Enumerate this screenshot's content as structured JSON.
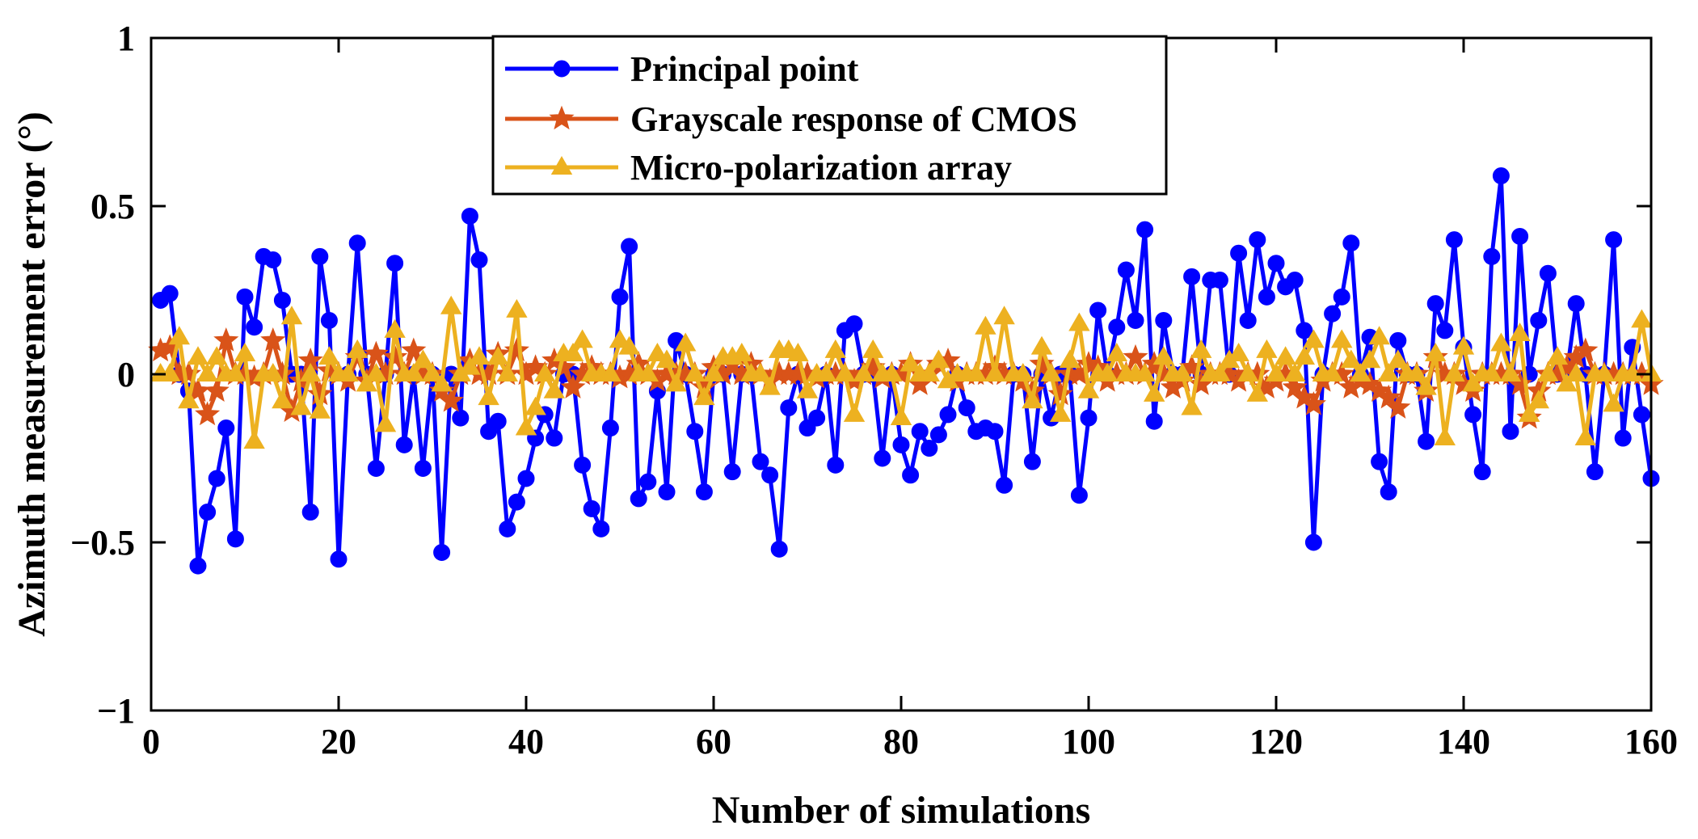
{
  "chart_data": {
    "type": "line",
    "title": "",
    "xlabel": "Number of simulations",
    "ylabel": "Azimuth measurement error (°)",
    "xlim": [
      0,
      160
    ],
    "ylim": [
      -1,
      1
    ],
    "xticks": [
      0,
      20,
      40,
      60,
      80,
      100,
      120,
      140,
      160
    ],
    "yticks": [
      -1,
      -0.5,
      0,
      0.5,
      1
    ],
    "xtick_labels": [
      "0",
      "20",
      "40",
      "60",
      "80",
      "100",
      "120",
      "140",
      "160"
    ],
    "ytick_labels": [
      "−1",
      "−0.5",
      "0",
      "0.5",
      "1"
    ],
    "grid": false,
    "legend_position": "top-center",
    "x": [
      1,
      2,
      3,
      4,
      5,
      6,
      7,
      8,
      9,
      10,
      11,
      12,
      13,
      14,
      15,
      16,
      17,
      18,
      19,
      20,
      21,
      22,
      23,
      24,
      25,
      26,
      27,
      28,
      29,
      30,
      31,
      32,
      33,
      34,
      35,
      36,
      37,
      38,
      39,
      40,
      41,
      42,
      43,
      44,
      45,
      46,
      47,
      48,
      49,
      50,
      51,
      52,
      53,
      54,
      55,
      56,
      57,
      58,
      59,
      60,
      61,
      62,
      63,
      64,
      65,
      66,
      67,
      68,
      69,
      70,
      71,
      72,
      73,
      74,
      75,
      76,
      77,
      78,
      79,
      80,
      81,
      82,
      83,
      84,
      85,
      86,
      87,
      88,
      89,
      90,
      91,
      92,
      93,
      94,
      95,
      96,
      97,
      98,
      99,
      100,
      101,
      102,
      103,
      104,
      105,
      106,
      107,
      108,
      109,
      110,
      111,
      112,
      113,
      114,
      115,
      116,
      117,
      118,
      119,
      120,
      121,
      122,
      123,
      124,
      125,
      126,
      127,
      128,
      129,
      130,
      131,
      132,
      133,
      134,
      135,
      136,
      137,
      138,
      139,
      140,
      141,
      142,
      143,
      144,
      145,
      146,
      147,
      148,
      149,
      150,
      151,
      152,
      153,
      154,
      155,
      156,
      157,
      158,
      159,
      160
    ],
    "series": [
      {
        "name": "Principal point",
        "color": "#0000ff",
        "marker": "circle",
        "values": [
          0.22,
          0.24,
          0.0,
          -0.05,
          -0.57,
          -0.41,
          -0.31,
          -0.16,
          -0.49,
          0.23,
          0.14,
          0.35,
          0.34,
          0.22,
          0.0,
          0.0,
          -0.41,
          0.35,
          0.16,
          -0.55,
          0.0,
          0.39,
          0.0,
          -0.28,
          0.0,
          0.33,
          -0.21,
          0.0,
          -0.28,
          0.0,
          -0.53,
          0.0,
          -0.13,
          0.47,
          0.34,
          -0.17,
          -0.14,
          -0.46,
          -0.38,
          -0.31,
          -0.19,
          -0.12,
          -0.19,
          0.0,
          0.0,
          -0.27,
          -0.4,
          -0.46,
          -0.16,
          0.23,
          0.38,
          -0.37,
          -0.32,
          -0.05,
          -0.35,
          0.1,
          0.0,
          -0.17,
          -0.35,
          0.0,
          0.0,
          -0.29,
          0.0,
          0.0,
          -0.26,
          -0.3,
          -0.52,
          -0.1,
          0.0,
          -0.16,
          -0.13,
          0.0,
          -0.27,
          0.13,
          0.15,
          0.0,
          0.0,
          -0.25,
          0.0,
          -0.21,
          -0.3,
          -0.17,
          -0.22,
          -0.18,
          -0.12,
          0.0,
          -0.1,
          -0.17,
          -0.16,
          -0.17,
          -0.33,
          0.0,
          0.0,
          -0.26,
          0.0,
          -0.13,
          0.0,
          0.0,
          -0.36,
          -0.13,
          0.19,
          0.0,
          0.14,
          0.31,
          0.16,
          0.43,
          -0.14,
          0.16,
          0.0,
          0.0,
          0.29,
          0.0,
          0.28,
          0.28,
          0.0,
          0.36,
          0.16,
          0.4,
          0.23,
          0.33,
          0.26,
          0.28,
          0.13,
          -0.5,
          0.0,
          0.18,
          0.23,
          0.39,
          0.0,
          0.11,
          -0.26,
          -0.35,
          0.1,
          0.0,
          0.0,
          -0.2,
          0.21,
          0.13,
          0.4,
          0.08,
          -0.12,
          -0.29,
          0.35,
          0.59,
          -0.17,
          0.41,
          0.0,
          0.16,
          0.3,
          0.0,
          0.0,
          0.21,
          0.0,
          -0.29,
          0.0,
          0.4,
          -0.19,
          0.08,
          -0.12,
          -0.31
        ]
      },
      {
        "name": "Grayscale response of CMOS",
        "color": "#d95319",
        "marker": "star",
        "values": [
          0.07,
          0.08,
          0.0,
          0.0,
          -0.05,
          -0.12,
          -0.05,
          0.1,
          0.0,
          0.0,
          -0.01,
          0.0,
          0.1,
          0.0,
          -0.11,
          -0.02,
          0.04,
          -0.06,
          0.01,
          0.0,
          -0.02,
          0.05,
          -0.02,
          0.06,
          0.0,
          0.05,
          0.0,
          0.07,
          0.0,
          0.0,
          -0.05,
          -0.08,
          0.0,
          0.04,
          0.0,
          0.0,
          0.06,
          0.0,
          0.07,
          0.0,
          0.02,
          0.0,
          0.04,
          0.02,
          -0.04,
          0.0,
          0.02,
          0.0,
          0.0,
          -0.01,
          0.0,
          0.03,
          0.0,
          -0.02,
          0.0,
          0.0,
          0.0,
          0.0,
          -0.04,
          0.02,
          0.0,
          0.03,
          0.0,
          0.03,
          0.0,
          -0.02,
          0.0,
          0.0,
          0.0,
          0.0,
          -0.01,
          0.0,
          0.0,
          0.0,
          -0.02,
          0.0,
          0.02,
          -0.01,
          0.0,
          0.0,
          0.03,
          -0.03,
          0.0,
          0.03,
          0.04,
          -0.02,
          0.0,
          0.0,
          0.0,
          0.02,
          0.0,
          0.0,
          -0.02,
          -0.05,
          0.03,
          0.0,
          -0.06,
          0.0,
          0.0,
          0.03,
          0.02,
          -0.02,
          0.0,
          0.0,
          0.05,
          0.0,
          0.03,
          0.0,
          -0.04,
          -0.02,
          0.02,
          -0.03,
          0.0,
          0.0,
          0.0,
          -0.02,
          0.0,
          0.0,
          -0.04,
          -0.02,
          0.0,
          -0.04,
          -0.07,
          -0.09,
          -0.02,
          0.0,
          0.0,
          -0.04,
          -0.02,
          -0.03,
          -0.05,
          -0.07,
          -0.1,
          0.0,
          0.0,
          -0.05,
          0.05,
          0.0,
          0.0,
          -0.03,
          -0.05,
          0.0,
          0.0,
          0.0,
          0.0,
          -0.03,
          -0.13,
          -0.05,
          0.0,
          0.0,
          0.02,
          0.05,
          0.07,
          0.0,
          0.0,
          0.0,
          0.0,
          0.0,
          0.0,
          -0.03
        ]
      },
      {
        "name": "Micro-polarization array",
        "color": "#edb120",
        "marker": "triangle",
        "values": [
          0.0,
          0.0,
          0.11,
          -0.08,
          0.05,
          0.0,
          0.05,
          0.0,
          0.0,
          0.06,
          -0.2,
          0.0,
          0.0,
          -0.08,
          0.17,
          -0.1,
          0.0,
          -0.11,
          0.05,
          0.0,
          0.0,
          0.07,
          -0.03,
          0.0,
          -0.15,
          0.13,
          0.0,
          0.0,
          0.04,
          0.0,
          -0.03,
          0.2,
          0.0,
          0.02,
          0.05,
          -0.07,
          0.05,
          0.0,
          0.19,
          -0.16,
          -0.1,
          0.0,
          -0.05,
          0.06,
          0.06,
          0.1,
          0.0,
          0.0,
          0.0,
          0.1,
          0.08,
          0.0,
          0.0,
          0.06,
          0.04,
          -0.03,
          0.09,
          0.0,
          -0.07,
          0.0,
          0.05,
          0.05,
          0.06,
          0.0,
          0.0,
          -0.04,
          0.07,
          0.07,
          0.06,
          -0.05,
          0.0,
          0.0,
          0.07,
          0.0,
          -0.12,
          0.0,
          0.07,
          0.0,
          0.0,
          -0.13,
          0.03,
          0.0,
          0.0,
          0.04,
          -0.02,
          0.0,
          0.0,
          0.0,
          0.14,
          0.0,
          0.17,
          0.0,
          0.0,
          -0.08,
          0.08,
          0.0,
          -0.12,
          0.04,
          0.15,
          -0.05,
          0.0,
          0.0,
          0.06,
          0.0,
          0.0,
          0.0,
          -0.06,
          0.05,
          0.0,
          0.0,
          -0.1,
          0.07,
          0.0,
          0.0,
          0.04,
          0.06,
          0.0,
          -0.06,
          0.07,
          0.0,
          0.05,
          0.0,
          0.05,
          0.1,
          0.0,
          0.0,
          0.1,
          0.04,
          0.0,
          0.04,
          0.11,
          0.0,
          0.04,
          0.0,
          0.0,
          -0.04,
          0.06,
          -0.19,
          0.0,
          0.08,
          -0.03,
          0.0,
          0.0,
          0.09,
          0.0,
          0.12,
          -0.12,
          -0.08,
          0.0,
          0.05,
          -0.03,
          0.0,
          -0.19,
          0.0,
          0.0,
          -0.09,
          0.0,
          0.0,
          0.16,
          0.0
        ]
      }
    ]
  }
}
